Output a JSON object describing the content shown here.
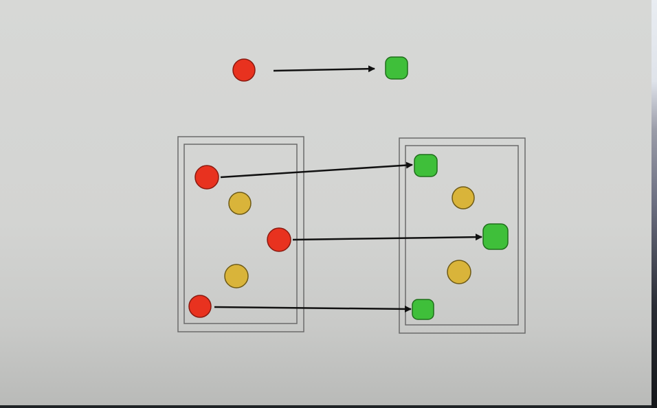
{
  "colors": {
    "background": "#d5d6d4",
    "source_red": "#e8321f",
    "target_green": "#3fbf3a",
    "distractor_yellow": "#d9b43a",
    "arrow": "#111111",
    "box_border": "#6a6a6a"
  },
  "legend": {
    "source": "red-circle",
    "target": "green-rounded-square"
  },
  "left_set": {
    "items": [
      {
        "kind": "source",
        "color": "red"
      },
      {
        "kind": "distractor",
        "color": "yellow"
      },
      {
        "kind": "source",
        "color": "red"
      },
      {
        "kind": "distractor",
        "color": "yellow"
      },
      {
        "kind": "source",
        "color": "red"
      }
    ]
  },
  "right_set": {
    "items": [
      {
        "kind": "target",
        "color": "green"
      },
      {
        "kind": "distractor",
        "color": "yellow"
      },
      {
        "kind": "target",
        "color": "green"
      },
      {
        "kind": "distractor",
        "color": "yellow"
      },
      {
        "kind": "target",
        "color": "green"
      }
    ]
  },
  "mappings": [
    {
      "from": "left-1",
      "to": "right-1"
    },
    {
      "from": "left-3",
      "to": "right-3"
    },
    {
      "from": "left-5",
      "to": "right-5"
    }
  ]
}
